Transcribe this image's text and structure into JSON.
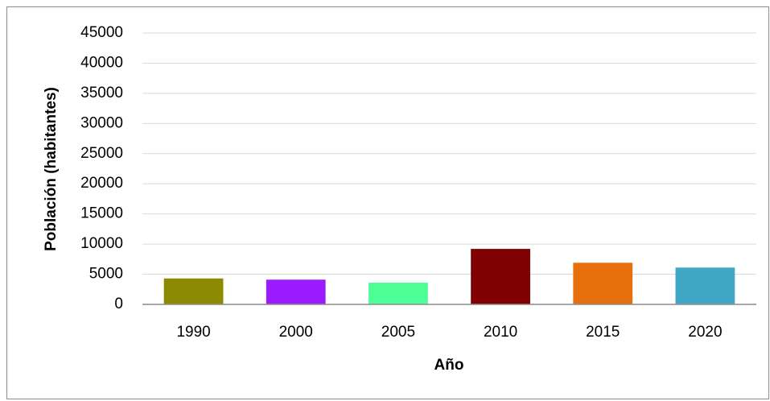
{
  "chart_data": {
    "type": "bar",
    "x_label": "Año",
    "y_label": "Población (habitantes)",
    "categories": [
      "1990",
      "2000",
      "2005",
      "2010",
      "2015",
      "2020"
    ],
    "values": [
      4300,
      4100,
      3600,
      9200,
      6900,
      6100
    ],
    "colors": [
      "#8b8a00",
      "#9b1bff",
      "#4dff97",
      "#7f0000",
      "#e8700c",
      "#40a8c4"
    ],
    "ylim": [
      0,
      45000
    ],
    "yticks": [
      0,
      5000,
      10000,
      15000,
      20000,
      25000,
      30000,
      35000,
      40000,
      45000
    ],
    "grid": true
  }
}
